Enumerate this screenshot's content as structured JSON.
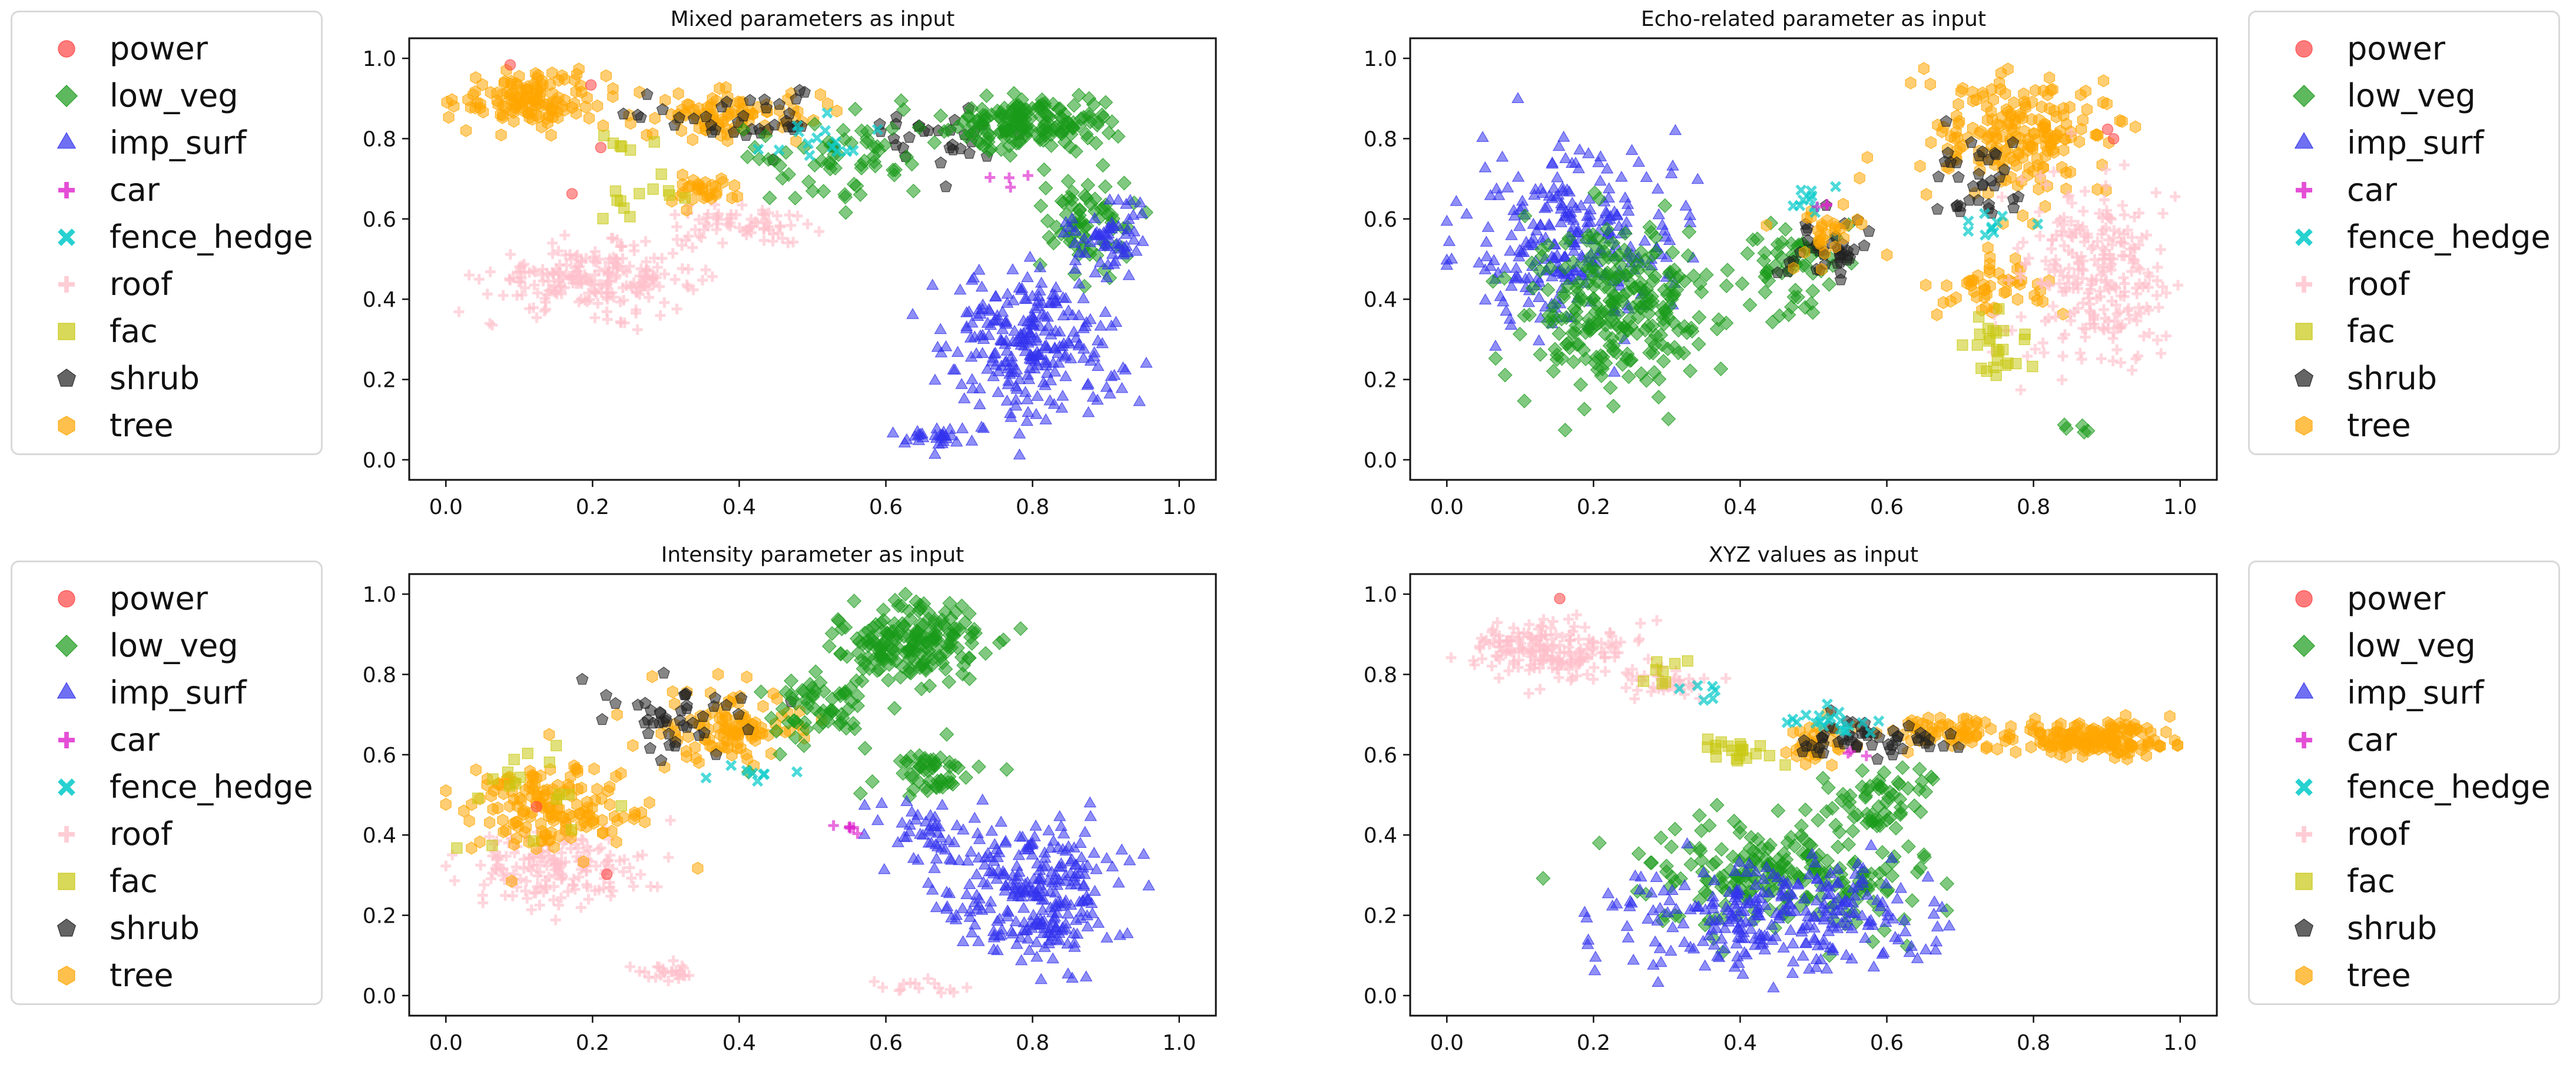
{
  "legend": {
    "items": [
      {
        "label": "power",
        "marker": "circle",
        "color": "#ff4444"
      },
      {
        "label": "low_veg",
        "marker": "diamond",
        "color": "#1a9a1a"
      },
      {
        "label": "imp_surf",
        "marker": "triangle",
        "color": "#3333ee"
      },
      {
        "label": "car",
        "marker": "plus",
        "color": "#dd22cc"
      },
      {
        "label": "fence_hedge",
        "marker": "x",
        "color": "#11cccc"
      },
      {
        "label": "roof",
        "marker": "plus",
        "color": "#ffc0cb"
      },
      {
        "label": "fac",
        "marker": "square",
        "color": "#c8c812"
      },
      {
        "label": "shrub",
        "marker": "pentagon",
        "color": "#222222"
      },
      {
        "label": "tree",
        "marker": "hexagon",
        "color": "#ffa500"
      }
    ]
  },
  "chart_data": [
    {
      "type": "scatter",
      "title": "Mixed parameters  as input",
      "xlim": [
        -0.05,
        1.05
      ],
      "ylim": [
        -0.05,
        1.05
      ],
      "xticks": [
        "0.0",
        "0.2",
        "0.4",
        "0.6",
        "0.8",
        "1.0"
      ],
      "yticks": [
        "0.0",
        "0.2",
        "0.4",
        "0.6",
        "0.8",
        "1.0"
      ],
      "clusters": [
        {
          "class": "roof",
          "cx": 0.2,
          "cy": 0.45,
          "rx": 0.14,
          "ry": 0.08,
          "n": 220
        },
        {
          "class": "roof",
          "cx": 0.4,
          "cy": 0.58,
          "rx": 0.1,
          "ry": 0.05,
          "n": 70
        },
        {
          "class": "tree",
          "cx": 0.12,
          "cy": 0.9,
          "rx": 0.1,
          "ry": 0.07,
          "n": 130
        },
        {
          "class": "tree",
          "cx": 0.38,
          "cy": 0.86,
          "rx": 0.12,
          "ry": 0.06,
          "n": 90
        },
        {
          "class": "tree",
          "cx": 0.35,
          "cy": 0.67,
          "rx": 0.05,
          "ry": 0.04,
          "n": 30
        },
        {
          "class": "shrub",
          "cx": 0.4,
          "cy": 0.85,
          "rx": 0.18,
          "ry": 0.07,
          "n": 40
        },
        {
          "class": "shrub",
          "cx": 0.68,
          "cy": 0.8,
          "rx": 0.12,
          "ry": 0.08,
          "n": 30
        },
        {
          "class": "low_veg",
          "cx": 0.8,
          "cy": 0.84,
          "rx": 0.12,
          "ry": 0.07,
          "n": 170
        },
        {
          "class": "low_veg",
          "cx": 0.53,
          "cy": 0.74,
          "rx": 0.1,
          "ry": 0.1,
          "n": 60
        },
        {
          "class": "low_veg",
          "cx": 0.88,
          "cy": 0.6,
          "rx": 0.06,
          "ry": 0.14,
          "n": 70
        },
        {
          "class": "imp_surf",
          "cx": 0.8,
          "cy": 0.28,
          "rx": 0.12,
          "ry": 0.18,
          "n": 260
        },
        {
          "class": "imp_surf",
          "cx": 0.9,
          "cy": 0.56,
          "rx": 0.06,
          "ry": 0.1,
          "n": 60
        },
        {
          "class": "imp_surf",
          "cx": 0.66,
          "cy": 0.06,
          "rx": 0.05,
          "ry": 0.03,
          "n": 30
        },
        {
          "class": "fence_hedge",
          "cx": 0.5,
          "cy": 0.8,
          "rx": 0.1,
          "ry": 0.05,
          "n": 15
        },
        {
          "class": "fac",
          "cx": 0.27,
          "cy": 0.66,
          "rx": 0.08,
          "ry": 0.06,
          "n": 12
        },
        {
          "class": "fac",
          "cx": 0.25,
          "cy": 0.8,
          "rx": 0.06,
          "ry": 0.03,
          "n": 6
        },
        {
          "class": "car",
          "cx": 0.78,
          "cy": 0.7,
          "rx": 0.05,
          "ry": 0.05,
          "n": 4
        },
        {
          "class": "power",
          "cx": 0.16,
          "cy": 0.75,
          "rx": 0.1,
          "ry": 0.2,
          "n": 4
        }
      ]
    },
    {
      "type": "scatter",
      "title": "Echo-related parameter as input",
      "xlim": [
        -0.05,
        1.05
      ],
      "ylim": [
        -0.05,
        1.05
      ],
      "xticks": [
        "0.0",
        "0.2",
        "0.4",
        "0.6",
        "0.8",
        "1.0"
      ],
      "yticks": [
        "0.0",
        "0.2",
        "0.4",
        "0.6",
        "0.8",
        "1.0"
      ],
      "clusters": [
        {
          "class": "imp_surf",
          "cx": 0.17,
          "cy": 0.55,
          "rx": 0.14,
          "ry": 0.22,
          "n": 280
        },
        {
          "class": "low_veg",
          "cx": 0.24,
          "cy": 0.38,
          "rx": 0.13,
          "ry": 0.22,
          "n": 260
        },
        {
          "class": "low_veg",
          "cx": 0.47,
          "cy": 0.48,
          "rx": 0.06,
          "ry": 0.12,
          "n": 60
        },
        {
          "class": "shrub",
          "cx": 0.52,
          "cy": 0.52,
          "rx": 0.06,
          "ry": 0.07,
          "n": 40
        },
        {
          "class": "tree",
          "cx": 0.52,
          "cy": 0.58,
          "rx": 0.05,
          "ry": 0.1,
          "n": 30
        },
        {
          "class": "fence_hedge",
          "cx": 0.5,
          "cy": 0.66,
          "rx": 0.04,
          "ry": 0.05,
          "n": 10
        },
        {
          "class": "tree",
          "cx": 0.78,
          "cy": 0.8,
          "rx": 0.12,
          "ry": 0.15,
          "n": 200
        },
        {
          "class": "tree",
          "cx": 0.74,
          "cy": 0.43,
          "rx": 0.08,
          "ry": 0.08,
          "n": 50
        },
        {
          "class": "shrub",
          "cx": 0.72,
          "cy": 0.7,
          "rx": 0.06,
          "ry": 0.1,
          "n": 35
        },
        {
          "class": "roof",
          "cx": 0.88,
          "cy": 0.45,
          "rx": 0.1,
          "ry": 0.25,
          "n": 260
        },
        {
          "class": "fac",
          "cx": 0.76,
          "cy": 0.28,
          "rx": 0.05,
          "ry": 0.09,
          "n": 25
        },
        {
          "class": "fence_hedge",
          "cx": 0.75,
          "cy": 0.6,
          "rx": 0.06,
          "ry": 0.05,
          "n": 10
        },
        {
          "class": "low_veg",
          "cx": 0.85,
          "cy": 0.08,
          "rx": 0.03,
          "ry": 0.02,
          "n": 5
        },
        {
          "class": "car",
          "cx": 0.52,
          "cy": 0.64,
          "rx": 0.02,
          "ry": 0.02,
          "n": 3
        },
        {
          "class": "power",
          "cx": 0.91,
          "cy": 0.82,
          "rx": 0.02,
          "ry": 0.02,
          "n": 2
        }
      ]
    },
    {
      "type": "scatter",
      "title": "Intensity parameter as input",
      "xlim": [
        -0.05,
        1.05
      ],
      "ylim": [
        -0.05,
        1.05
      ],
      "xticks": [
        "0.0",
        "0.2",
        "0.4",
        "0.6",
        "0.8",
        "1.0"
      ],
      "yticks": [
        "0.0",
        "0.2",
        "0.4",
        "0.6",
        "0.8",
        "1.0"
      ],
      "clusters": [
        {
          "class": "roof",
          "cx": 0.15,
          "cy": 0.32,
          "rx": 0.13,
          "ry": 0.1,
          "n": 170
        },
        {
          "class": "roof",
          "cx": 0.3,
          "cy": 0.06,
          "rx": 0.05,
          "ry": 0.02,
          "n": 25
        },
        {
          "class": "roof",
          "cx": 0.64,
          "cy": 0.02,
          "rx": 0.05,
          "ry": 0.02,
          "n": 15
        },
        {
          "class": "tree",
          "cx": 0.15,
          "cy": 0.46,
          "rx": 0.12,
          "ry": 0.12,
          "n": 160
        },
        {
          "class": "tree",
          "cx": 0.38,
          "cy": 0.66,
          "rx": 0.1,
          "ry": 0.1,
          "n": 110
        },
        {
          "class": "shrub",
          "cx": 0.32,
          "cy": 0.7,
          "rx": 0.12,
          "ry": 0.1,
          "n": 45
        },
        {
          "class": "low_veg",
          "cx": 0.64,
          "cy": 0.88,
          "rx": 0.1,
          "ry": 0.1,
          "n": 190
        },
        {
          "class": "low_veg",
          "cx": 0.5,
          "cy": 0.7,
          "rx": 0.08,
          "ry": 0.1,
          "n": 60
        },
        {
          "class": "low_veg",
          "cx": 0.66,
          "cy": 0.55,
          "rx": 0.07,
          "ry": 0.06,
          "n": 50
        },
        {
          "class": "imp_surf",
          "cx": 0.8,
          "cy": 0.26,
          "rx": 0.12,
          "ry": 0.18,
          "n": 280
        },
        {
          "class": "imp_surf",
          "cx": 0.64,
          "cy": 0.42,
          "rx": 0.06,
          "ry": 0.08,
          "n": 40
        },
        {
          "class": "fac",
          "cx": 0.1,
          "cy": 0.5,
          "rx": 0.1,
          "ry": 0.12,
          "n": 18
        },
        {
          "class": "fence_hedge",
          "cx": 0.42,
          "cy": 0.56,
          "rx": 0.05,
          "ry": 0.05,
          "n": 8
        },
        {
          "class": "car",
          "cx": 0.55,
          "cy": 0.42,
          "rx": 0.02,
          "ry": 0.02,
          "n": 6
        },
        {
          "class": "power",
          "cx": 0.12,
          "cy": 0.3,
          "rx": 0.12,
          "ry": 0.25,
          "n": 2
        }
      ]
    },
    {
      "type": "scatter",
      "title": "XYZ values as input",
      "xlim": [
        -0.05,
        1.05
      ],
      "ylim": [
        -0.05,
        1.05
      ],
      "xticks": [
        "0.0",
        "0.2",
        "0.4",
        "0.6",
        "0.8",
        "1.0"
      ],
      "yticks": [
        "0.0",
        "0.2",
        "0.4",
        "0.6",
        "0.8",
        "1.0"
      ],
      "clusters": [
        {
          "class": "roof",
          "cx": 0.14,
          "cy": 0.86,
          "rx": 0.1,
          "ry": 0.08,
          "n": 190
        },
        {
          "class": "roof",
          "cx": 0.3,
          "cy": 0.78,
          "rx": 0.06,
          "ry": 0.04,
          "n": 40
        },
        {
          "class": "tree",
          "cx": 0.88,
          "cy": 0.64,
          "rx": 0.1,
          "ry": 0.04,
          "n": 160
        },
        {
          "class": "tree",
          "cx": 0.68,
          "cy": 0.66,
          "rx": 0.08,
          "ry": 0.04,
          "n": 60
        },
        {
          "class": "tree",
          "cx": 0.5,
          "cy": 0.63,
          "rx": 0.06,
          "ry": 0.05,
          "n": 40
        },
        {
          "class": "shrub",
          "cx": 0.58,
          "cy": 0.64,
          "rx": 0.12,
          "ry": 0.05,
          "n": 55
        },
        {
          "class": "fence_hedge",
          "cx": 0.52,
          "cy": 0.68,
          "rx": 0.05,
          "ry": 0.04,
          "n": 20
        },
        {
          "class": "fence_hedge",
          "cx": 0.35,
          "cy": 0.76,
          "rx": 0.03,
          "ry": 0.03,
          "n": 6
        },
        {
          "class": "fac",
          "cx": 0.4,
          "cy": 0.61,
          "rx": 0.05,
          "ry": 0.03,
          "n": 20
        },
        {
          "class": "fac",
          "cx": 0.3,
          "cy": 0.8,
          "rx": 0.05,
          "ry": 0.05,
          "n": 8
        },
        {
          "class": "low_veg",
          "cx": 0.45,
          "cy": 0.3,
          "rx": 0.2,
          "ry": 0.14,
          "n": 220
        },
        {
          "class": "low_veg",
          "cx": 0.6,
          "cy": 0.5,
          "rx": 0.08,
          "ry": 0.1,
          "n": 60
        },
        {
          "class": "imp_surf",
          "cx": 0.45,
          "cy": 0.2,
          "rx": 0.2,
          "ry": 0.14,
          "n": 280
        },
        {
          "class": "car",
          "cx": 0.56,
          "cy": 0.6,
          "rx": 0.02,
          "ry": 0.02,
          "n": 3
        },
        {
          "class": "power",
          "cx": 0.15,
          "cy": 0.99,
          "rx": 0.01,
          "ry": 0.01,
          "n": 1
        }
      ]
    }
  ]
}
